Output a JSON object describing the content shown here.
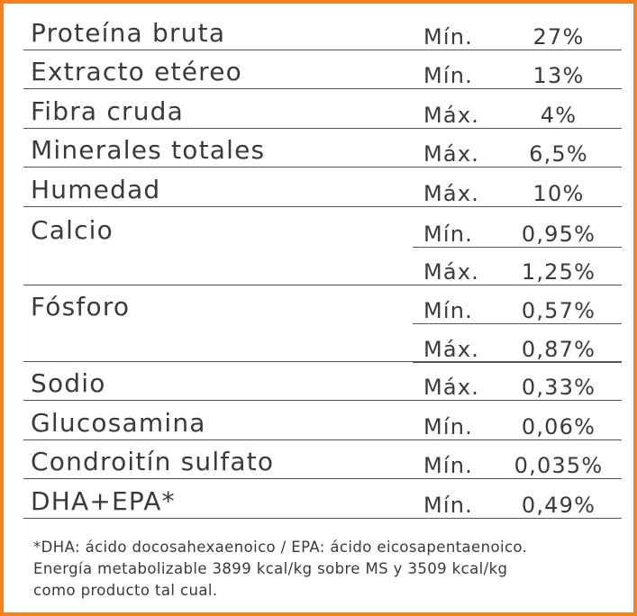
{
  "rows": [
    {
      "name": "Proteína bruta",
      "type": "Mín.",
      "value": "27%"
    },
    {
      "name": "Extracto etéreo",
      "type": "Mín.",
      "value": "13%"
    },
    {
      "name": "Fibra cruda",
      "type": "Máx.",
      "value": "4%"
    },
    {
      "name": "Minerales totales",
      "type": "Máx.",
      "value": "6,5%"
    },
    {
      "name": "Humedad",
      "type": "Máx.",
      "value": "10%"
    },
    {
      "name": "Calcio",
      "type": "Mín.",
      "value": "0,95%"
    },
    {
      "name": "",
      "type": "Máx.",
      "value": "1,25%"
    },
    {
      "name": "Fósforo",
      "type": "Mín.",
      "value": "0,57%"
    },
    {
      "name": "",
      "type": "Máx.",
      "value": "0,87%"
    },
    {
      "name": "Sodio",
      "type": "Máx.",
      "value": "0,33%"
    },
    {
      "name": "Glucosamina",
      "type": "Mín.",
      "value": "0,06%"
    },
    {
      "name": "Condroitín sulfato",
      "type": "Mín.",
      "value": "0,035%"
    },
    {
      "name": "DHA+EPA*",
      "type": "Mín.",
      "value": "0,49%"
    }
  ],
  "footnote": {
    "line1": "*DHA: ácido docosahexaenoico / EPA: ácido eicosapentaenoico.",
    "line2": "Energía metabolizable 3899 kcal/kg sobre MS y 3509 kcal/kg",
    "line3": "como producto tal cual."
  },
  "colors": {
    "border": "#f58220",
    "text": "#3a3a3a",
    "rule": "#555555"
  }
}
